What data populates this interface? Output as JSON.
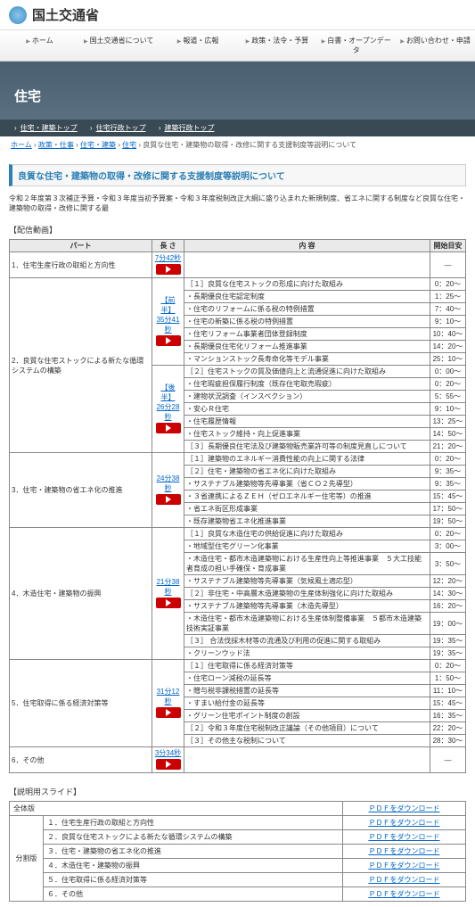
{
  "site_title": "国土交通省",
  "nav": [
    "ホーム",
    "国土交通省について",
    "報道・広報",
    "政策・法令・予算",
    "白書・オープンデータ",
    "お問い合わせ・申請"
  ],
  "hero_title": "住宅",
  "subnav": [
    "住宅・建築トップ",
    "住宅行政トップ",
    "建築行政トップ"
  ],
  "breadcrumb": [
    "ホーム",
    "政策・仕事",
    "住宅・建築",
    "住宅",
    "良質な住宅・建築物の取得・改修に関する支援制度等説明について"
  ],
  "page_title": "良質な住宅・建築物の取得・改修に関する支援制度等説明について",
  "intro": "令和２年度第３次補正予算・令和３年度当初予算案・令和３年度税制改正大綱に盛り込まれた新規制度、省エネに関する制度など良質な住宅・建築物の取得・改修に関する最",
  "video_label": "【配信動画】",
  "video_headers": {
    "part": "パート",
    "len": "長 さ",
    "content": "内      容",
    "time": "開始目安"
  },
  "parts": [
    {
      "num": "1",
      "title": "住宅生産行政の取組と方向性",
      "segments": [
        {
          "label": "",
          "len": "7分42秒",
          "rows": []
        }
      ]
    },
    {
      "num": "2",
      "title": "良質な住宅ストックによる新たな循環システムの構築",
      "segments": [
        {
          "label": "【前半】",
          "len": "35分41秒",
          "rows": [
            {
              "c": "［１］良質な住宅ストックの形成に向けた取組み",
              "t": "0：20～"
            },
            {
              "c": "・長期優良住宅認定制度",
              "t": "1：25～"
            },
            {
              "c": "・住宅のリフォームに係る税の特例措置",
              "t": "7：40～"
            },
            {
              "c": "・住宅の新築に係る税の特例措置",
              "t": "9：10～"
            },
            {
              "c": "・住宅リフォーム事業者団体登録制度",
              "t": "10：40～"
            },
            {
              "c": "・長期優良住宅化リフォーム推進事業",
              "t": "14：20～"
            },
            {
              "c": "・マンションストック長寿命化等モデル事業",
              "t": "25：10～"
            }
          ]
        },
        {
          "label": "【後半】",
          "len": "26分28秒",
          "rows": [
            {
              "c": "［２］住宅ストックの質及価値向上と流通促進に向けた取組み",
              "t": "0：00～"
            },
            {
              "c": "・住宅瑕疵担保履行制度（既存住宅取売瑕疵）",
              "t": "0：20～"
            },
            {
              "c": "・建物状況調査（インスペクション）",
              "t": "5：55～"
            },
            {
              "c": "・安心Ｒ住宅",
              "t": "9：10～"
            },
            {
              "c": "・住宅履歴情報",
              "t": "13：25～"
            },
            {
              "c": "・住宅ストック維持・向上促進事業",
              "t": "14：50～"
            },
            {
              "c": "［３］長期優良住宅法及び建築物販売業許可等の制度見直しについて",
              "t": "21：20～"
            }
          ]
        }
      ]
    },
    {
      "num": "3",
      "title": "住宅・建築物の省エネ化の推進",
      "segments": [
        {
          "label": "",
          "len": "24分38秒",
          "rows": [
            {
              "c": "［１］建築物のエネルギー消費性能の向上に関する法律",
              "t": "0：20～"
            },
            {
              "c": "［２］住宅・建築物の省エネ化に向けた取組み",
              "t": "9：35～"
            },
            {
              "c": "・サステナブル建築物等先導事業（省ＣＯ２先導型）",
              "t": "9：35～"
            },
            {
              "c": "・３省連携によるＺＥＨ（ゼロエネルギー住宅等）の推進",
              "t": "15：45～"
            },
            {
              "c": "・省エネ街区形成事業",
              "t": "17：50～"
            },
            {
              "c": "・既存建築物省エネ化推進事業",
              "t": "19：50～"
            }
          ]
        }
      ]
    },
    {
      "num": "4",
      "title": "木造住宅・建築物の振興",
      "segments": [
        {
          "label": "",
          "len": "21分38秒",
          "rows": [
            {
              "c": "［１］良質な木造住宅の供給促進に向けた取組み",
              "t": "0：20～"
            },
            {
              "c": "・地域型住宅グリーン化事業",
              "t": "3：00～"
            },
            {
              "c": "・木造住宅・都市木造建築物における生産性向上等推進事業　５大工技能者育成の担い手確保・育成事業",
              "t": "3：50～"
            },
            {
              "c": "・サステナブル建築物等先導事業（気候風土適応型）",
              "t": "12：20～"
            },
            {
              "c": "［２］非住宅・中高層木造建築物の生産体制強化に向けた取組み",
              "t": "14：30～"
            },
            {
              "c": "・サステナブル建築物等先導事業（木造先導型）",
              "t": "16：20～"
            },
            {
              "c": "・木造住宅・都市木造建築物における生産体制整備事業　５都市木造建築技術実証事業",
              "t": "19：00～"
            },
            {
              "c": "［３］ 合法伐採木材等の流通及び利用の促進に関する取組み",
              "t": "19：35～"
            },
            {
              "c": "・クリーンウッド法",
              "t": "19：35～"
            }
          ]
        }
      ]
    },
    {
      "num": "5",
      "title": "住宅取得に係る経済対策等",
      "segments": [
        {
          "label": "",
          "len": "31分12秒",
          "rows": [
            {
              "c": "［１］住宅取得に係る経済対策等",
              "t": "0：20～"
            },
            {
              "c": "・住宅ローン減税の延長等",
              "t": "1：50～"
            },
            {
              "c": "・贈与税非課税措置の延長等",
              "t": "11：10～"
            },
            {
              "c": "・すまい給付金の延長等",
              "t": "15：45～"
            },
            {
              "c": "・グリーン住宅ポイント制度の創設",
              "t": "16：35～"
            },
            {
              "c": "［２］令和３年度住宅税制改正議論（その他項目）について",
              "t": "22：20～"
            },
            {
              "c": "［３］その他主な税制について",
              "t": "28：30～"
            }
          ]
        }
      ]
    },
    {
      "num": "6",
      "title": "その他",
      "segments": [
        {
          "label": "",
          "len": "3分34秒",
          "rows": []
        }
      ]
    }
  ],
  "slides_label": "【説明用スライド】",
  "slides": {
    "full": "全体版",
    "split_label": "分割版",
    "split": [
      "１．住宅生産行政の取組と方向性",
      "２．良質な住宅ストックによる新たな循環システムの構築",
      "３．住宅・建築物の省エネ化の推進",
      "４．木造住宅・建築物の振興",
      "５．住宅取得に係る経済対策等",
      "６．その他"
    ],
    "dl_label": "ＰＤＦをダウンロード"
  }
}
